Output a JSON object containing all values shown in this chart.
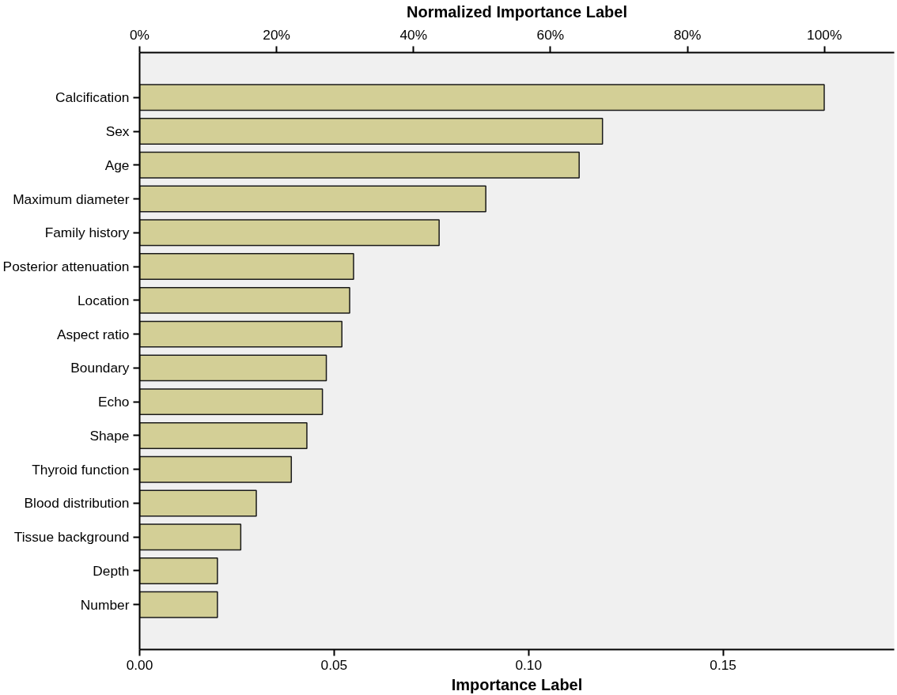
{
  "chart_data": {
    "type": "bar",
    "orientation": "horizontal",
    "xlabel": "Importance Label",
    "x2label": "Normalized Importance Label",
    "categories": [
      "Calcification",
      "Sex",
      "Age",
      "Maximum diameter",
      "Family history",
      "Posterior attenuation",
      "Location",
      "Aspect ratio",
      "Boundary",
      "Echo",
      "Shape",
      "Thyroid function",
      "Blood distribution",
      "Tissue background",
      "Depth",
      "Number"
    ],
    "values": [
      0.176,
      0.119,
      0.113,
      0.089,
      0.077,
      0.055,
      0.054,
      0.052,
      0.048,
      0.047,
      0.043,
      0.039,
      0.03,
      0.026,
      0.02,
      0.02
    ],
    "color": "#d3cf96",
    "xlim": [
      0,
      0.194
    ],
    "xticks": [
      {
        "value": 0,
        "label": "0.00"
      },
      0.05,
      {
        "value": 0.1,
        "label": "0.10"
      },
      0.15
    ],
    "x2lim": [
      0,
      110.2
    ],
    "x2ticks": [
      {
        "value": 0,
        "label": "0%"
      },
      {
        "value": 20,
        "label": "20%"
      },
      {
        "value": 40,
        "label": "40%"
      },
      {
        "value": 60,
        "label": "60%"
      },
      {
        "value": 80,
        "label": "80%"
      },
      {
        "value": 100,
        "label": "100%"
      }
    ],
    "grid": false
  }
}
